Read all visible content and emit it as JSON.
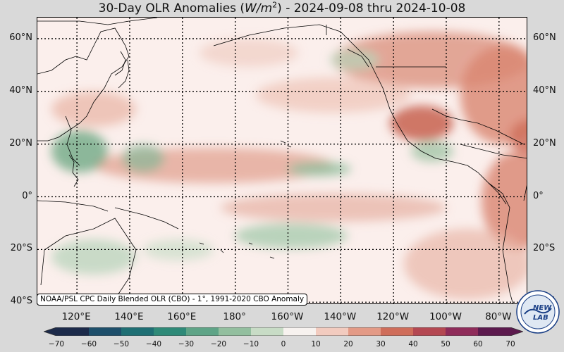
{
  "title": {
    "prefix": "30-Day OLR Anomalies (",
    "unit_base": "W/m",
    "unit_exp": "2",
    "suffix": ") - 2024-09-08 thru 2024-10-08"
  },
  "lat_labels": [
    "60°N",
    "40°N",
    "20°N",
    "0°",
    "20°S",
    "40°S"
  ],
  "lat_values": [
    60,
    40,
    20,
    0,
    -20,
    -40
  ],
  "lon_labels": [
    "120°E",
    "140°E",
    "160°E",
    "180°",
    "160°W",
    "140°W",
    "120°W",
    "100°W",
    "80°W"
  ],
  "lon_values": [
    120,
    140,
    160,
    180,
    200,
    220,
    240,
    260,
    280
  ],
  "credit": "NOAA/PSL CPC Daily Blended OLR (CBO) - 1°, 1991-2020 CBO Anomaly",
  "colorbar": {
    "ticks": [
      "−70",
      "−60",
      "−50",
      "−40",
      "−30",
      "−20",
      "−10",
      "0",
      "10",
      "20",
      "30",
      "40",
      "50",
      "60",
      "70"
    ],
    "tick_values": [
      -70,
      -60,
      -50,
      -40,
      -30,
      -20,
      -10,
      0,
      10,
      20,
      30,
      40,
      50,
      60,
      70
    ],
    "colors": [
      "#1c2a4a",
      "#1e4f6b",
      "#1f6f74",
      "#2f8a78",
      "#5fa487",
      "#93bf9f",
      "#c8dcc6",
      "#f7f2ef",
      "#f2cbbf",
      "#e39a86",
      "#cf6d5a",
      "#b44852",
      "#8f2c5a",
      "#5c1a4e"
    ]
  },
  "logo": {
    "text_top": "NEW",
    "text_bottom": "LAB",
    "ring_text": "NOAA"
  },
  "colors": {
    "background": "#d9d9d9",
    "ocean_neutral": "#fbefec",
    "positive": "#d98b77",
    "negative": "#5c9e78"
  }
}
